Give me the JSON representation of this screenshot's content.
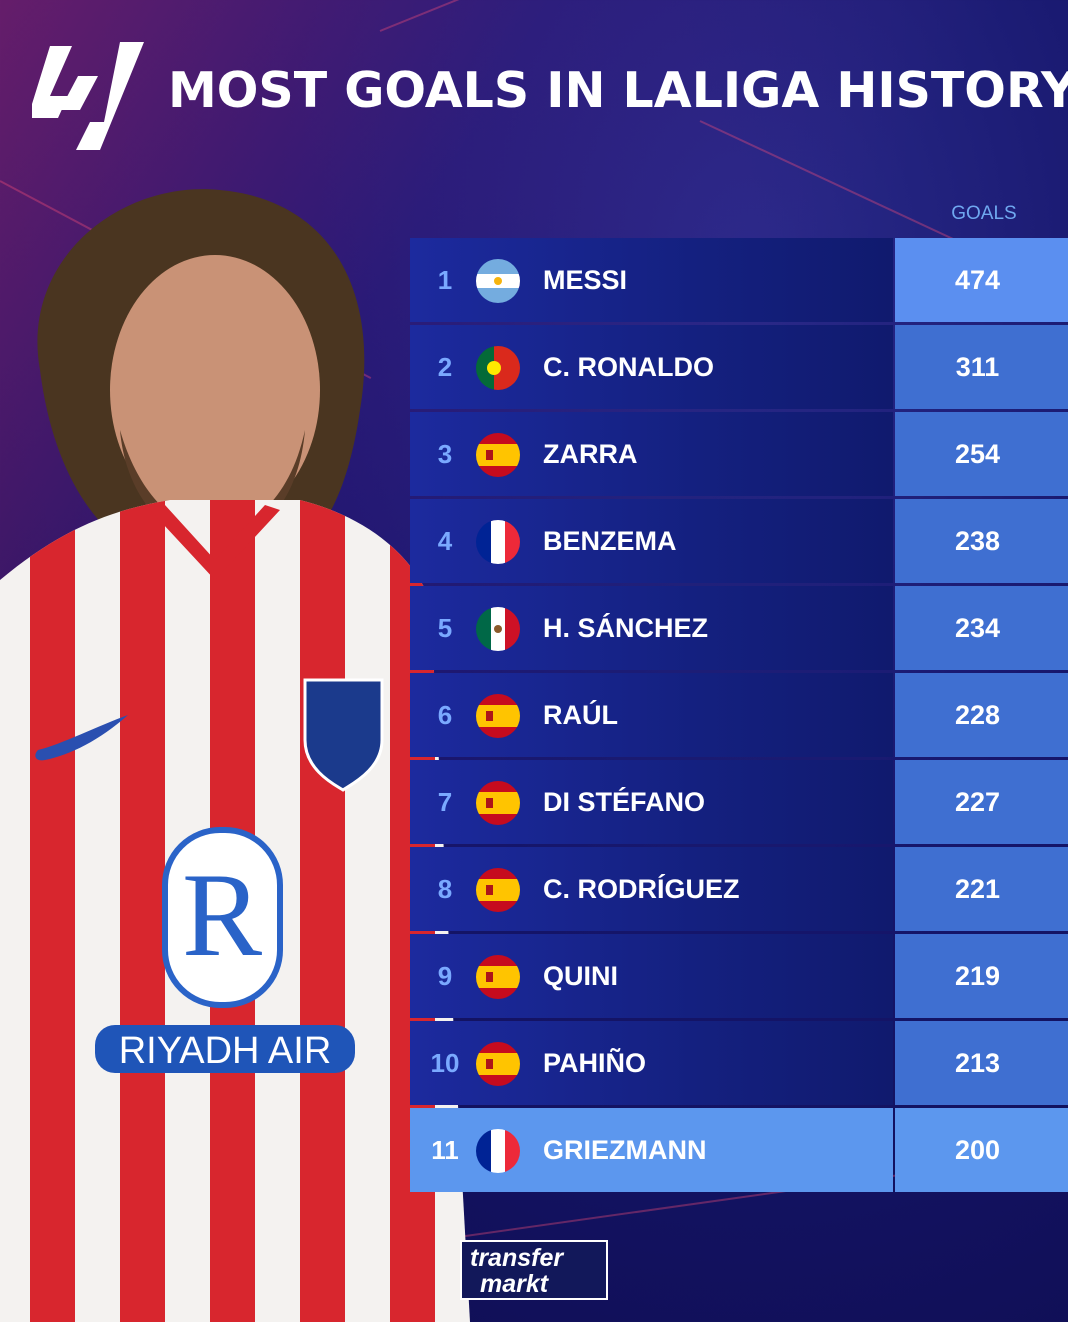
{
  "header": {
    "title": "MOST GOALS IN LALIGA HISTORY"
  },
  "table": {
    "column_header": "GOALS",
    "rows": [
      {
        "rank": "1",
        "name": "MESSI",
        "goals": "474",
        "flag": "argentina-flag-icon"
      },
      {
        "rank": "2",
        "name": "C. RONALDO",
        "goals": "311",
        "flag": "portugal-flag-icon"
      },
      {
        "rank": "3",
        "name": "ZARRA",
        "goals": "254",
        "flag": "spain-flag-icon"
      },
      {
        "rank": "4",
        "name": "BENZEMA",
        "goals": "238",
        "flag": "france-flag-icon"
      },
      {
        "rank": "5",
        "name": "H. SÁNCHEZ",
        "goals": "234",
        "flag": "mexico-flag-icon"
      },
      {
        "rank": "6",
        "name": "RAÚL",
        "goals": "228",
        "flag": "spain-flag-icon"
      },
      {
        "rank": "7",
        "name": "DI STÉFANO",
        "goals": "227",
        "flag": "spain-flag-icon"
      },
      {
        "rank": "8",
        "name": "C. RODRÍGUEZ",
        "goals": "221",
        "flag": "spain-flag-icon"
      },
      {
        "rank": "9",
        "name": "QUINI",
        "goals": "219",
        "flag": "spain-flag-icon"
      },
      {
        "rank": "10",
        "name": "PAHIÑO",
        "goals": "213",
        "flag": "spain-flag-icon"
      },
      {
        "rank": "11",
        "name": "GRIEZMANN",
        "goals": "200",
        "flag": "france-flag-icon"
      }
    ]
  },
  "player_image": {
    "sponsor_text": "RIYADH AIR"
  },
  "brand": {
    "line1": "transfer",
    "line2": "markt"
  },
  "colors": {
    "background": "#15156a",
    "row": "#1c2a9e",
    "goals_cell": "#3f6fd1",
    "highlight": "#5c97ee",
    "rank_text": "#7aa9ff"
  }
}
